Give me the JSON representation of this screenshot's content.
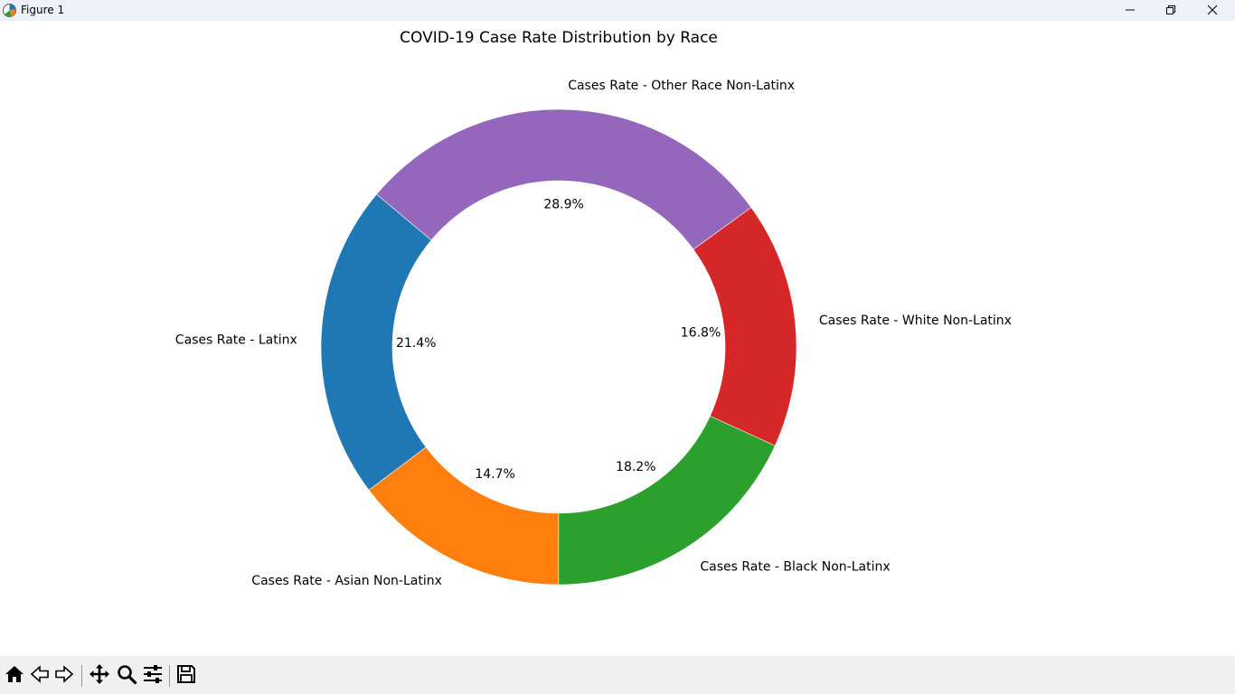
{
  "window": {
    "title": "Figure 1",
    "icons": [
      "app-icon",
      "minimize-icon",
      "maximize-icon",
      "close-icon"
    ]
  },
  "toolbar": {
    "icons": [
      "home-icon",
      "back-icon",
      "forward-icon",
      "pan-icon",
      "zoom-icon",
      "configure-subplots-icon",
      "save-icon"
    ]
  },
  "chart_data": {
    "type": "pie",
    "subtype": "donut",
    "title": "COVID-19 Case Rate Distribution by Race",
    "start_angle_deg": 140,
    "direction": "counterclockwise",
    "legend": "none",
    "slices": [
      {
        "label": "Cases Rate - Latinx",
        "percent": 21.4,
        "pct_label": "21.4%",
        "color": "#1f77b4"
      },
      {
        "label": "Cases Rate - Asian Non-Latinx",
        "percent": 14.7,
        "pct_label": "14.7%",
        "color": "#ff7f0e"
      },
      {
        "label": "Cases Rate - Black Non-Latinx",
        "percent": 18.2,
        "pct_label": "18.2%",
        "color": "#2ca02c"
      },
      {
        "label": "Cases Rate - White Non-Latinx",
        "percent": 16.8,
        "pct_label": "16.8%",
        "color": "#d62728"
      },
      {
        "label": "Cases Rate - Other Race Non-Latinx",
        "percent": 28.9,
        "pct_label": "28.9%",
        "color": "#9467bd"
      }
    ]
  }
}
